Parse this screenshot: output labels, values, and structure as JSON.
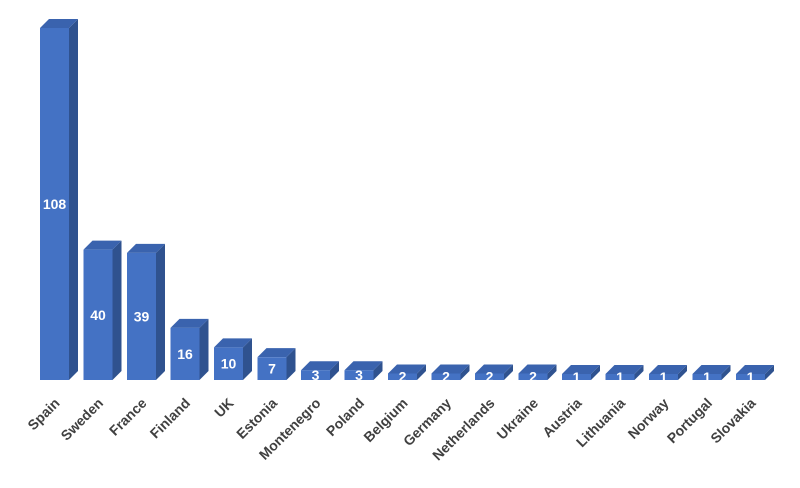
{
  "chart_data": {
    "type": "bar",
    "title": "",
    "xlabel": "",
    "ylabel": "",
    "categories": [
      "Spain",
      "Sweden",
      "France",
      "Finland",
      "UK",
      "Estonia",
      "Montenegro",
      "Poland",
      "Belgium",
      "Germany",
      "Netherlands",
      "Ukraine",
      "Austria",
      "Lithuania",
      "Norway",
      "Portugal",
      "Slovakia"
    ],
    "values": [
      108,
      40,
      39,
      16,
      10,
      7,
      3,
      3,
      2,
      2,
      2,
      2,
      1,
      1,
      1,
      1,
      1
    ],
    "data_labels": [
      "108",
      "40",
      "39",
      "16",
      "10",
      "7",
      "3",
      "3",
      "2",
      "2",
      "2",
      "2",
      "1",
      "1",
      "1",
      "1",
      "1"
    ],
    "ylim": [
      0,
      108
    ],
    "grid": false,
    "legend": "none",
    "style": "3d-column",
    "colors": {
      "front": "#4472C4",
      "side": "#2F528F",
      "top": "#3A63AE",
      "label": "#404040",
      "data_label": "#FFFFFF"
    }
  }
}
